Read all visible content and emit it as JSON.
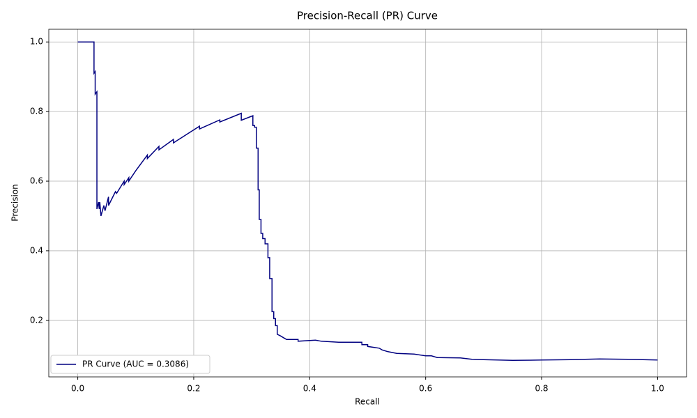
{
  "chart_data": {
    "type": "line",
    "title": "Precision-Recall (PR) Curve",
    "x_label": "Recall",
    "y_label": "Precision",
    "xlim": [
      -0.05,
      1.05
    ],
    "ylim": [
      0.0375,
      1.0365
    ],
    "xticks": [
      {
        "value": 0,
        "label": "0.0"
      },
      0.2,
      0.4,
      0.6,
      0.8,
      {
        "value": 1,
        "label": "1.0"
      }
    ],
    "yticks": [
      0.2,
      0.4,
      0.6,
      0.8,
      {
        "value": 1,
        "label": "1.0"
      }
    ],
    "grid": true,
    "legend": "lower left",
    "series": [
      {
        "name": "PR Curve (AUC = 0.3086)",
        "color": "#000080",
        "x": [
          0,
          0.028,
          0.028,
          0.03,
          0.03,
          0.033,
          0.033,
          0.036,
          0.037,
          0.038,
          0.04,
          0.045,
          0.047,
          0.053,
          0.053,
          0.065,
          0.067,
          0.08,
          0.08,
          0.088,
          0.088,
          0.1,
          0.12,
          0.12,
          0.14,
          0.14,
          0.165,
          0.165,
          0.21,
          0.21,
          0.245,
          0.245,
          0.282,
          0.282,
          0.302,
          0.302,
          0.305,
          0.305,
          0.308,
          0.308,
          0.311,
          0.311,
          0.313,
          0.313,
          0.316,
          0.316,
          0.319,
          0.319,
          0.323,
          0.323,
          0.328,
          0.328,
          0.331,
          0.331,
          0.335,
          0.335,
          0.338,
          0.338,
          0.341,
          0.341,
          0.344,
          0.344,
          0.35,
          0.355,
          0.36,
          0.38,
          0.38,
          0.41,
          0.42,
          0.45,
          0.49,
          0.49,
          0.5,
          0.5,
          0.52,
          0.525,
          0.535,
          0.55,
          0.58,
          0.6,
          0.61,
          0.62,
          0.66,
          0.68,
          0.7,
          0.75,
          0.8,
          0.85,
          0.9,
          0.95,
          1.0
        ],
        "values": [
          1.0,
          1.0,
          0.91,
          0.915,
          0.85,
          0.857,
          0.52,
          0.54,
          0.52,
          0.54,
          0.5,
          0.53,
          0.515,
          0.555,
          0.53,
          0.57,
          0.565,
          0.6,
          0.59,
          0.61,
          0.6,
          0.63,
          0.675,
          0.665,
          0.7,
          0.69,
          0.72,
          0.71,
          0.758,
          0.75,
          0.776,
          0.77,
          0.795,
          0.775,
          0.788,
          0.76,
          0.76,
          0.755,
          0.755,
          0.695,
          0.695,
          0.575,
          0.575,
          0.49,
          0.49,
          0.45,
          0.45,
          0.435,
          0.435,
          0.42,
          0.42,
          0.38,
          0.38,
          0.32,
          0.32,
          0.225,
          0.225,
          0.205,
          0.205,
          0.185,
          0.185,
          0.16,
          0.155,
          0.15,
          0.145,
          0.145,
          0.14,
          0.143,
          0.14,
          0.137,
          0.137,
          0.13,
          0.13,
          0.125,
          0.12,
          0.115,
          0.11,
          0.105,
          0.103,
          0.098,
          0.098,
          0.093,
          0.092,
          0.088,
          0.087,
          0.085,
          0.086,
          0.087,
          0.089,
          0.088,
          0.086
        ]
      }
    ]
  }
}
